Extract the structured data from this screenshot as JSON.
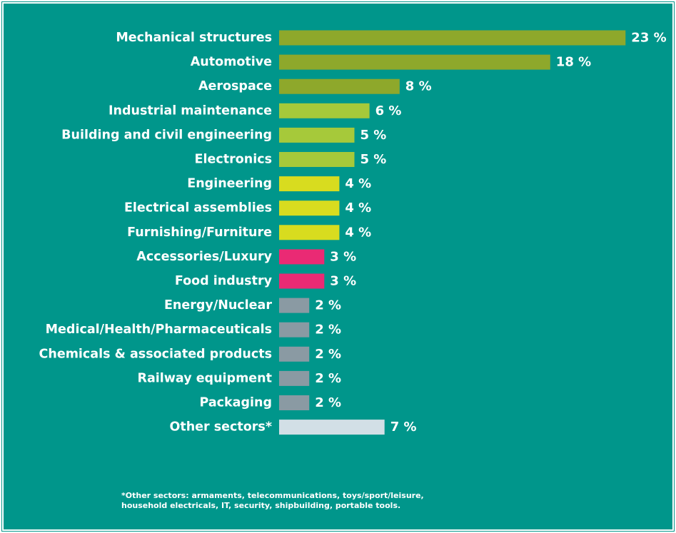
{
  "chart_data": {
    "type": "bar",
    "orientation": "horizontal",
    "categories": [
      "Mechanical structures",
      "Automotive",
      "Aerospace",
      "Industrial maintenance",
      "Building and civil engineering",
      "Electronics",
      "Engineering",
      "Electrical assemblies",
      "Furnishing/Furniture",
      "Accessories/Luxury",
      "Food industry",
      "Energy/Nuclear",
      "Medical/Health/Pharmaceuticals",
      "Chemicals & associated products",
      "Railway equipment",
      "Packaging",
      "Other sectors*"
    ],
    "values": [
      23,
      18,
      8,
      6,
      5,
      5,
      4,
      4,
      4,
      3,
      3,
      2,
      2,
      2,
      2,
      2,
      7
    ],
    "value_labels": [
      "23 %",
      "18 %",
      "8 %",
      "6 %",
      "5 %",
      "5 %",
      "4 %",
      "4 %",
      "4 %",
      "3 %",
      "3 %",
      "2 %",
      "2 %",
      "2 %",
      "2 %",
      "2 %",
      "7 %"
    ],
    "bar_colors": [
      "#8ea82b",
      "#8ea82b",
      "#8ea82b",
      "#a6c93a",
      "#a6c93a",
      "#a6c93a",
      "#d8dc1f",
      "#d8dc1f",
      "#d8dc1f",
      "#ea2a74",
      "#ea2a74",
      "#8a9aa3",
      "#8a9aa3",
      "#8a9aa3",
      "#8a9aa3",
      "#8a9aa3",
      "#d2dfe6"
    ],
    "background_color": "#00968b",
    "text_color": "#ffffff",
    "grid": false,
    "legend": "none"
  },
  "footnote": "*Other sectors: armaments, telecommunications, toys/sport/leisure,\nhousehold electricals, IT, security, shipbuilding, portable tools."
}
